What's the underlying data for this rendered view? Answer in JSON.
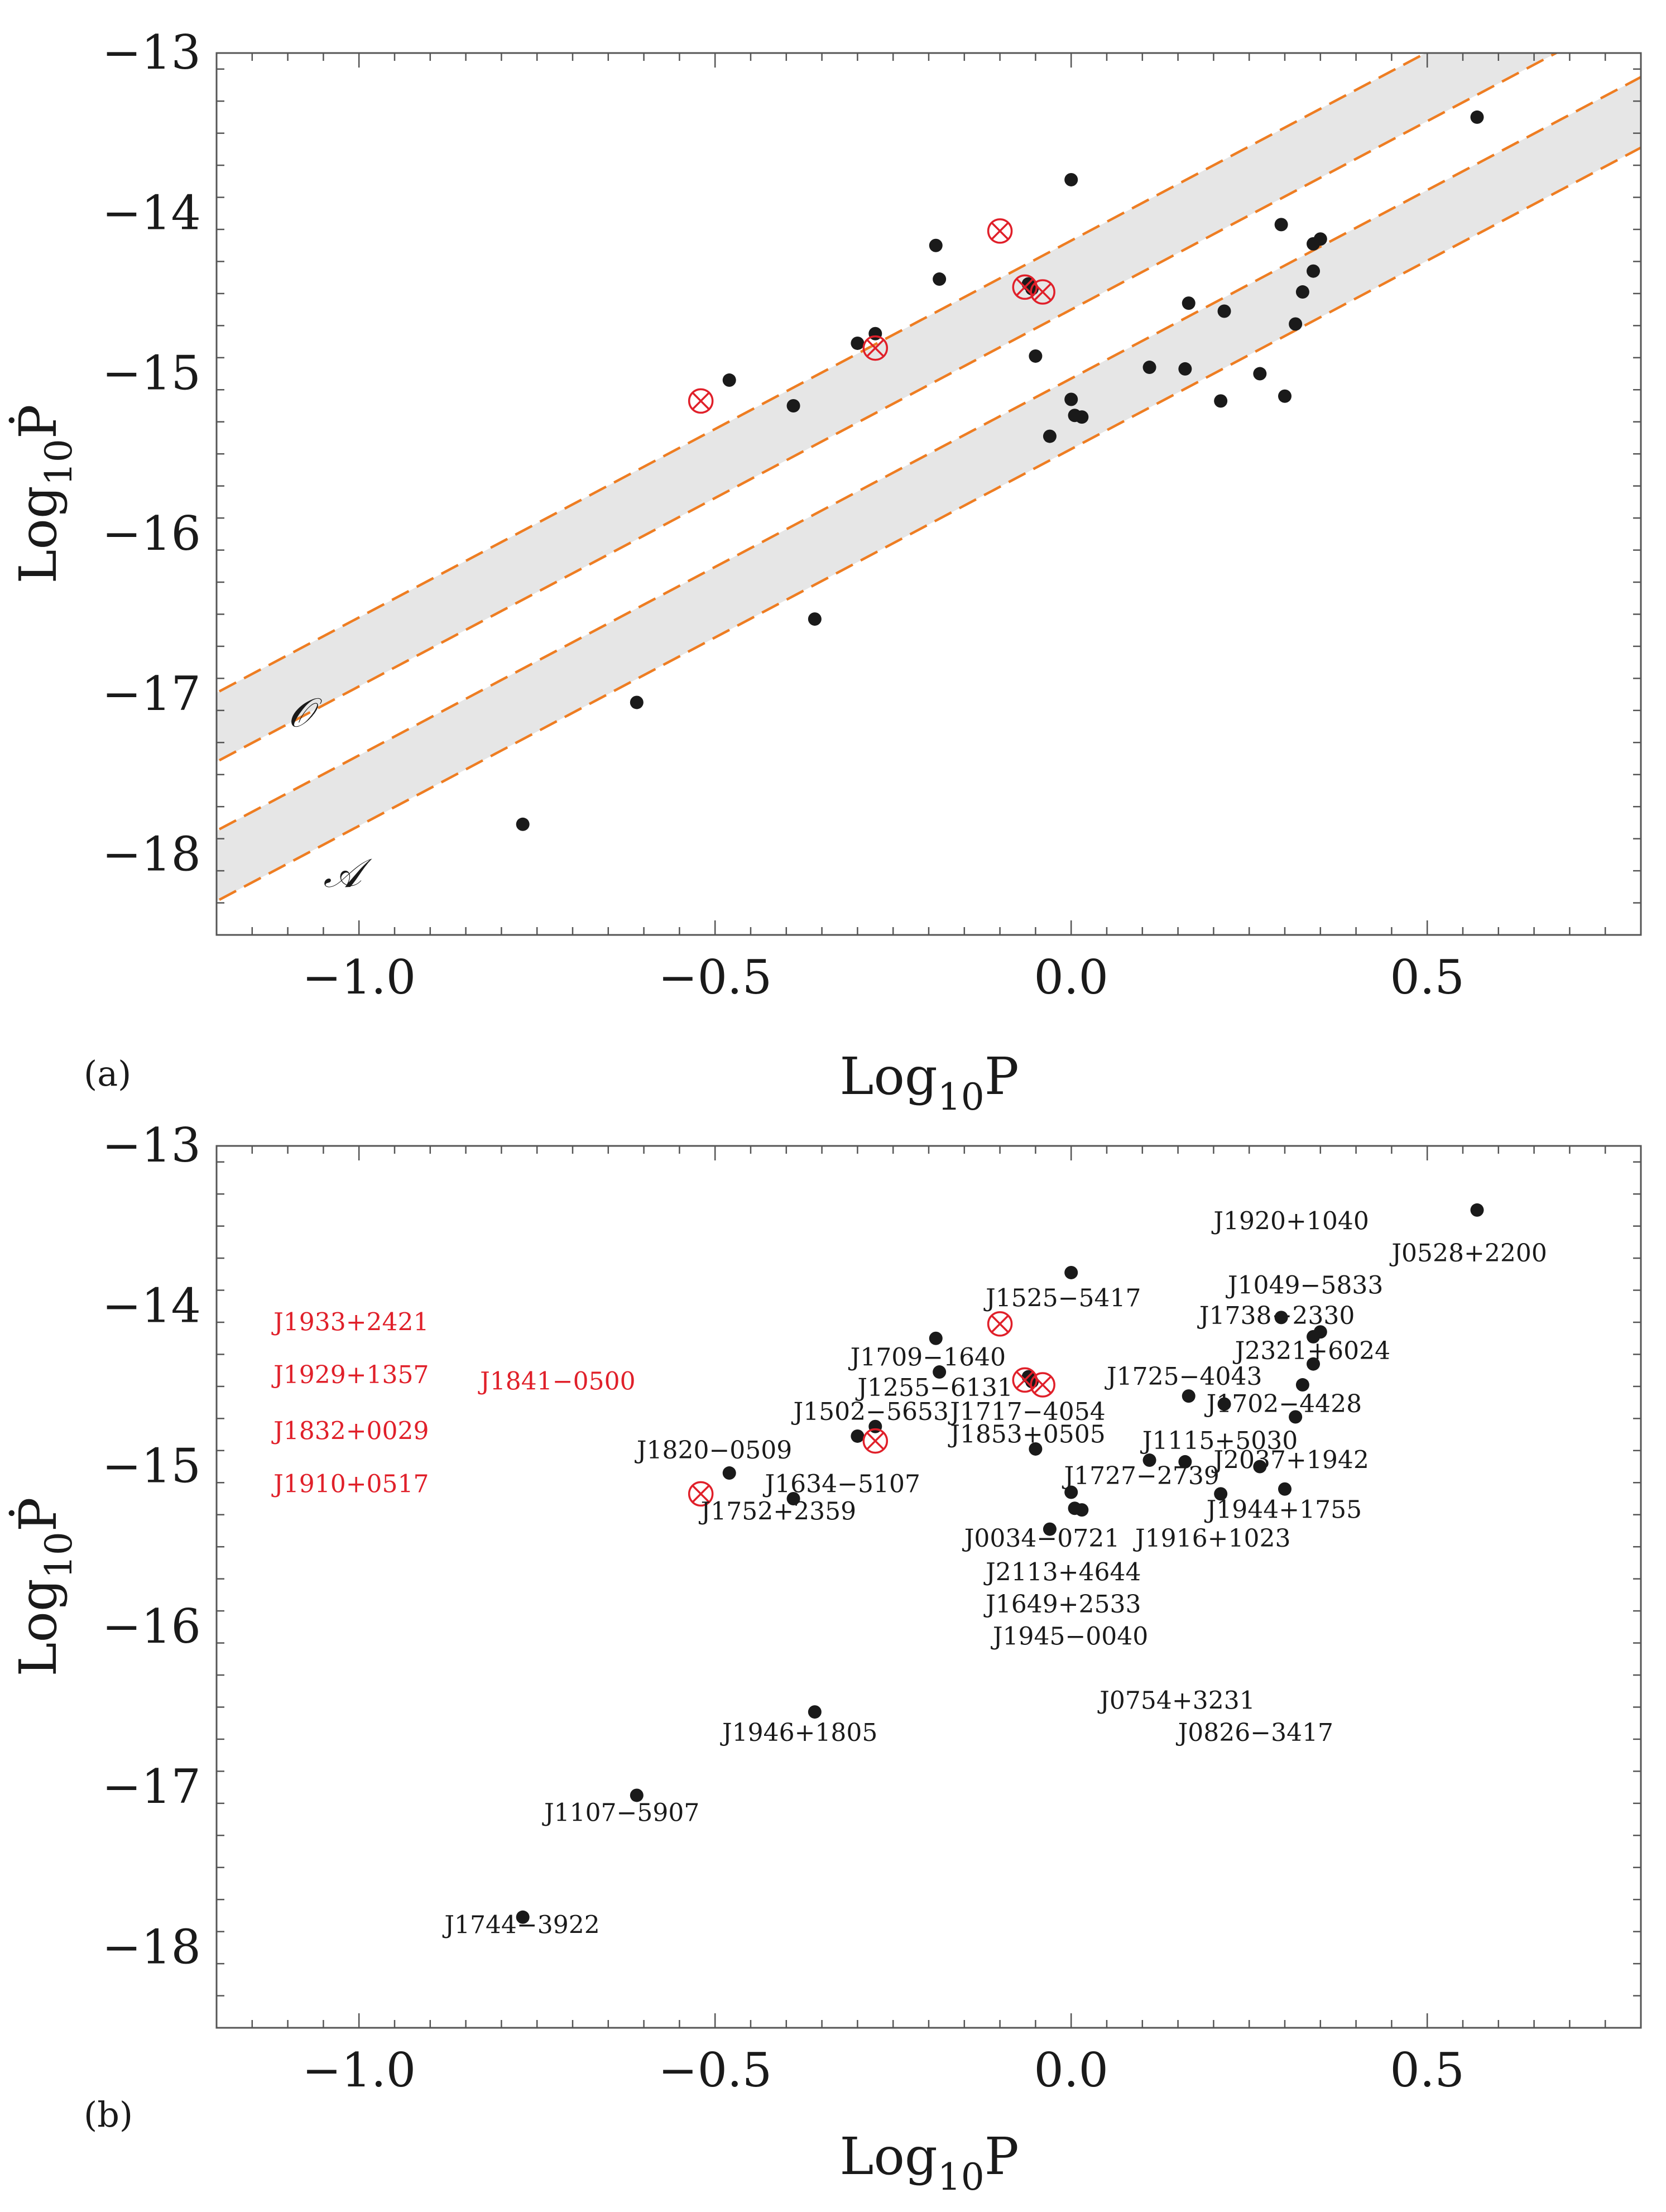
{
  "chart_data": [
    {
      "type": "scatter",
      "panel_label": "(a)",
      "xlabel": "Log",
      "xlabel_sub": "10",
      "xlabel_tail": "P",
      "ylabel": "Log",
      "ylabel_sub": "10",
      "ylabel_tail": "Ṗ",
      "xlim": [
        -1.2,
        0.8
      ],
      "ylim": [
        -18.5,
        -13
      ],
      "xticks": [
        -1.0,
        -0.5,
        0.0,
        0.5
      ],
      "xtick_labels": [
        "−1.0",
        "−0.5",
        "0.0",
        "0.5"
      ],
      "yticks": [
        -18,
        -17,
        -16,
        -15,
        -14,
        -13
      ],
      "ytick_labels": [
        "−18",
        "−17",
        "−16",
        "−15",
        "−14",
        "−13"
      ],
      "grid": false,
      "bands": [
        {
          "label": "𝒪",
          "slope": 2.35,
          "lower_intercept": -14.6,
          "upper_intercept": -14.17,
          "fill": "#e6e6e6",
          "line_color": "#ee7d22"
        },
        {
          "label": "𝒜",
          "slope": 2.35,
          "lower_intercept": -15.47,
          "upper_intercept": -15.03,
          "fill": "#e6e6e6",
          "line_color": "#ee7d22"
        }
      ],
      "band_label_positions": [
        {
          "label": "𝒪",
          "x": -1.1,
          "y": -17.2
        },
        {
          "label": "𝒜",
          "x": -1.05,
          "y": -18.2
        }
      ]
    },
    {
      "type": "scatter",
      "panel_label": "(b)",
      "xlabel": "Log",
      "xlabel_sub": "10",
      "xlabel_tail": "P",
      "ylabel": "Log",
      "ylabel_sub": "10",
      "ylabel_tail": "Ṗ",
      "xlim": [
        -1.2,
        0.8
      ],
      "ylim": [
        -18.5,
        -13
      ],
      "xticks": [
        -1.0,
        -0.5,
        0.0,
        0.5
      ],
      "xtick_labels": [
        "−1.0",
        "−0.5",
        "0.0",
        "0.5"
      ],
      "yticks": [
        -18,
        -17,
        -16,
        -15,
        -14,
        -13
      ],
      "ytick_labels": [
        "−18",
        "−17",
        "−16",
        "−15",
        "−14",
        "−13"
      ],
      "grid": false,
      "labels": [
        {
          "text": "J1920+1040",
          "x": 0.2,
          "y": -13.52,
          "color": "black"
        },
        {
          "text": "J0528+2200",
          "x": 0.45,
          "y": -13.72,
          "color": "black"
        },
        {
          "text": "J1049−5833",
          "x": 0.22,
          "y": -13.92,
          "color": "black"
        },
        {
          "text": "J1525−5417",
          "x": -0.12,
          "y": -14.0,
          "color": "black"
        },
        {
          "text": "J1738−2330",
          "x": 0.18,
          "y": -14.11,
          "color": "black"
        },
        {
          "text": "J1709−1640",
          "x": -0.31,
          "y": -14.37,
          "color": "black"
        },
        {
          "text": "J2321+6024",
          "x": 0.23,
          "y": -14.33,
          "color": "black"
        },
        {
          "text": "J1725−4043",
          "x": 0.05,
          "y": -14.49,
          "color": "black"
        },
        {
          "text": "J1255−6131",
          "x": -0.3,
          "y": -14.56,
          "color": "black"
        },
        {
          "text": "J1702−4428",
          "x": 0.19,
          "y": -14.66,
          "color": "black"
        },
        {
          "text": "J1502−5653",
          "x": -0.39,
          "y": -14.71,
          "color": "black"
        },
        {
          "text": "J1717−4054",
          "x": -0.17,
          "y": -14.71,
          "color": "black"
        },
        {
          "text": "J1853+0505",
          "x": -0.17,
          "y": -14.85,
          "color": "black"
        },
        {
          "text": "J1115+5030",
          "x": 0.1,
          "y": -14.89,
          "color": "black"
        },
        {
          "text": "J1820−0509",
          "x": -0.61,
          "y": -14.95,
          "color": "black"
        },
        {
          "text": "J2037+1942",
          "x": 0.2,
          "y": -15.01,
          "color": "black"
        },
        {
          "text": "J1727−2739",
          "x": -0.01,
          "y": -15.11,
          "color": "black"
        },
        {
          "text": "J1634−5107",
          "x": -0.43,
          "y": -15.16,
          "color": "black"
        },
        {
          "text": "J1752+2359",
          "x": -0.52,
          "y": -15.33,
          "color": "black"
        },
        {
          "text": "J1944+1755",
          "x": 0.19,
          "y": -15.32,
          "color": "black"
        },
        {
          "text": "J0034−0721",
          "x": -0.15,
          "y": -15.5,
          "color": "black"
        },
        {
          "text": "J1916+1023",
          "x": 0.09,
          "y": -15.5,
          "color": "black"
        },
        {
          "text": "J2113+4644",
          "x": -0.12,
          "y": -15.71,
          "color": "black"
        },
        {
          "text": "J1649+2533",
          "x": -0.12,
          "y": -15.91,
          "color": "black"
        },
        {
          "text": "J1945−0040",
          "x": -0.11,
          "y": -16.11,
          "color": "black"
        },
        {
          "text": "J0754+3231",
          "x": 0.04,
          "y": -16.51,
          "color": "black"
        },
        {
          "text": "J0826−3417",
          "x": 0.15,
          "y": -16.71,
          "color": "black"
        },
        {
          "text": "J1946+1805",
          "x": -0.49,
          "y": -16.71,
          "color": "black"
        },
        {
          "text": "J1107−5907",
          "x": -0.74,
          "y": -17.21,
          "color": "black"
        },
        {
          "text": "J1744−3922",
          "x": -0.88,
          "y": -17.91,
          "color": "black"
        },
        {
          "text": "J1933+2421",
          "x": -1.12,
          "y": -14.15,
          "color": "red"
        },
        {
          "text": "J1929+1357",
          "x": -1.12,
          "y": -14.48,
          "color": "red"
        },
        {
          "text": "J1841−0500",
          "x": -0.83,
          "y": -14.52,
          "color": "red"
        },
        {
          "text": "J1832+0029",
          "x": -1.12,
          "y": -14.83,
          "color": "red"
        },
        {
          "text": "J1910+0517",
          "x": -1.12,
          "y": -15.16,
          "color": "red"
        }
      ]
    }
  ],
  "points": [
    {
      "x": -0.77,
      "y": -17.81
    },
    {
      "x": -0.61,
      "y": -17.05
    },
    {
      "x": -0.48,
      "y": -15.04
    },
    {
      "x": -0.39,
      "y": -15.2
    },
    {
      "x": -0.36,
      "y": -16.53
    },
    {
      "x": -0.3,
      "y": -14.81
    },
    {
      "x": -0.275,
      "y": -14.75
    },
    {
      "x": -0.19,
      "y": -14.2
    },
    {
      "x": -0.185,
      "y": -14.41
    },
    {
      "x": -0.06,
      "y": -14.44
    },
    {
      "x": -0.055,
      "y": -14.47
    },
    {
      "x": -0.05,
      "y": -14.89
    },
    {
      "x": -0.03,
      "y": -15.39
    },
    {
      "x": 0.0,
      "y": -13.79
    },
    {
      "x": 0.0,
      "y": -15.16
    },
    {
      "x": 0.005,
      "y": -15.26
    },
    {
      "x": 0.015,
      "y": -15.27
    },
    {
      "x": 0.11,
      "y": -14.96
    },
    {
      "x": 0.16,
      "y": -14.97
    },
    {
      "x": 0.165,
      "y": -14.56
    },
    {
      "x": 0.21,
      "y": -15.17
    },
    {
      "x": 0.215,
      "y": -14.61
    },
    {
      "x": 0.265,
      "y": -15.0
    },
    {
      "x": 0.295,
      "y": -14.07
    },
    {
      "x": 0.3,
      "y": -15.14
    },
    {
      "x": 0.315,
      "y": -14.69
    },
    {
      "x": 0.325,
      "y": -14.49
    },
    {
      "x": 0.34,
      "y": -14.36
    },
    {
      "x": 0.34,
      "y": -14.19
    },
    {
      "x": 0.35,
      "y": -14.16
    },
    {
      "x": 0.57,
      "y": -13.4
    }
  ],
  "marked_points": [
    {
      "x": -0.52,
      "y": -15.17
    },
    {
      "x": -0.275,
      "y": -14.84
    },
    {
      "x": -0.1,
      "y": -14.11
    },
    {
      "x": -0.065,
      "y": -14.46
    },
    {
      "x": -0.04,
      "y": -14.49
    }
  ],
  "colors": {
    "point": "#1a1a1a",
    "marked": "#e0202a",
    "band_fill": "#e6e6e6",
    "band_line": "#ee7d22",
    "frame": "#555555"
  }
}
